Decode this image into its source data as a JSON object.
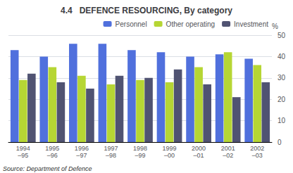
{
  "chart_data": {
    "type": "bar",
    "title": "4.4   DEFENCE RESOURCING, By category",
    "categories": [
      "1994\n–95",
      "1995\n–96",
      "1996\n–97",
      "1997\n–98",
      "1998\n–99",
      "1999\n–00",
      "2000\n–01",
      "2001\n–02",
      "2002\n–03"
    ],
    "series": [
      {
        "name": "Personnel",
        "values": [
          43,
          40,
          46,
          46,
          43,
          42,
          40,
          41,
          39
        ]
      },
      {
        "name": "Other operating",
        "values": [
          29,
          35,
          31,
          27,
          29,
          28,
          35,
          42,
          36
        ]
      },
      {
        "name": "Investment",
        "values": [
          32,
          28,
          25,
          31,
          30,
          34,
          27,
          21,
          28
        ]
      }
    ],
    "ylabel": "%",
    "ylim": [
      0,
      50
    ],
    "yticks": [
      0,
      10,
      20,
      30,
      40,
      50
    ],
    "grid": true,
    "legend": "upper right",
    "source": "Source: Department of Defence"
  }
}
